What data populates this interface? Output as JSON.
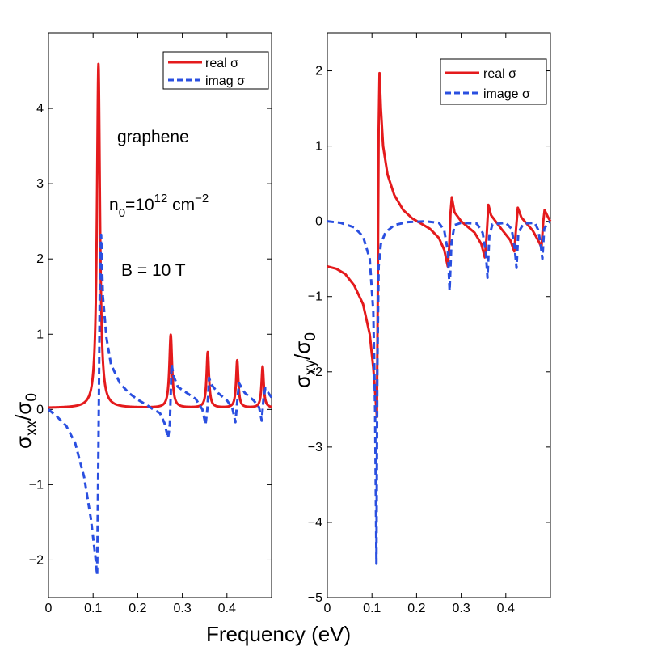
{
  "figure": {
    "shared_xlabel": "Frequency  (eV)"
  },
  "chart_data": [
    {
      "type": "line",
      "panel": "left",
      "ylabel": {
        "main": "σ",
        "sub": "xx",
        "mid": "/σ",
        "sub2": "0"
      },
      "xlim": [
        0,
        0.5
      ],
      "ylim": [
        -2.5,
        5
      ],
      "xticks": [
        0,
        0.1,
        0.2,
        0.3,
        0.4
      ],
      "xtick_labels": [
        "0",
        "0.1",
        "0.2",
        "0.3",
        "0.4"
      ],
      "yticks": [
        -2,
        -1,
        0,
        1,
        2,
        3,
        4
      ],
      "ytick_labels": [
        "−2",
        "−1",
        "0",
        "1",
        "2",
        "3",
        "4"
      ],
      "legend": [
        "real σ",
        "imag σ"
      ],
      "annotations": {
        "material": "graphene",
        "density_pre": "n",
        "density_sub": "0",
        "density_mid": "=10",
        "density_sup": "12",
        "density_unit": " cm",
        "density_unit_sup": "−2",
        "field": "B = 10 T"
      },
      "series": [
        {
          "name": "real σ",
          "color": "#e41a1c",
          "style": "solid",
          "resonances": [
            {
              "e0": 0.112,
              "w": 0.004,
              "a": 4.57
            },
            {
              "e0": 0.274,
              "w": 0.0036,
              "a": 0.97
            },
            {
              "e0": 0.357,
              "w": 0.0032,
              "a": 0.74
            },
            {
              "e0": 0.423,
              "w": 0.003,
              "a": 0.63
            },
            {
              "e0": 0.48,
              "w": 0.003,
              "a": 0.55
            }
          ],
          "baseline": 0.02
        },
        {
          "name": "imag σ",
          "color": "#2a4fe0",
          "style": "dashed",
          "points": [
            [
              0,
              0
            ],
            [
              0.02,
              -0.1
            ],
            [
              0.04,
              -0.22
            ],
            [
              0.06,
              -0.45
            ],
            [
              0.08,
              -0.9
            ],
            [
              0.095,
              -1.45
            ],
            [
              0.105,
              -1.95
            ],
            [
              0.109,
              -2.2
            ],
            [
              0.112,
              -0.5
            ],
            [
              0.115,
              1.6
            ],
            [
              0.118,
              2.32
            ],
            [
              0.122,
              1.5
            ],
            [
              0.13,
              0.95
            ],
            [
              0.14,
              0.6
            ],
            [
              0.16,
              0.35
            ],
            [
              0.18,
              0.22
            ],
            [
              0.2,
              0.13
            ],
            [
              0.22,
              0.06
            ],
            [
              0.235,
              0.0
            ],
            [
              0.25,
              -0.05
            ],
            [
              0.26,
              -0.18
            ],
            [
              0.268,
              -0.38
            ],
            [
              0.272,
              -0.2
            ],
            [
              0.276,
              0.6
            ],
            [
              0.28,
              0.45
            ],
            [
              0.29,
              0.3
            ],
            [
              0.31,
              0.22
            ],
            [
              0.33,
              0.14
            ],
            [
              0.345,
              0.0
            ],
            [
              0.352,
              -0.2
            ],
            [
              0.356,
              0.0
            ],
            [
              0.36,
              0.42
            ],
            [
              0.365,
              0.33
            ],
            [
              0.38,
              0.22
            ],
            [
              0.4,
              0.12
            ],
            [
              0.412,
              0.02
            ],
            [
              0.419,
              -0.17
            ],
            [
              0.423,
              0.1
            ],
            [
              0.427,
              0.35
            ],
            [
              0.44,
              0.22
            ],
            [
              0.46,
              0.12
            ],
            [
              0.472,
              0.03
            ],
            [
              0.478,
              -0.15
            ],
            [
              0.482,
              0.15
            ],
            [
              0.486,
              0.28
            ],
            [
              0.495,
              0.2
            ],
            [
              0.5,
              0.16
            ]
          ]
        }
      ]
    },
    {
      "type": "line",
      "panel": "right",
      "ylabel": {
        "main": "σ",
        "sub": "xy",
        "mid": "/σ",
        "sub2": "0"
      },
      "xlim": [
        0,
        0.5
      ],
      "ylim": [
        -5,
        2.5
      ],
      "xticks": [
        0,
        0.1,
        0.2,
        0.3,
        0.4
      ],
      "xtick_labels": [
        "0",
        "0.1",
        "0.2",
        "0.3",
        "0.4"
      ],
      "yticks": [
        -5,
        -4,
        -3,
        -2,
        -1,
        0,
        1,
        2
      ],
      "ytick_labels": [
        "−5",
        "−4",
        "−3",
        "−2",
        "−1",
        "0",
        "1",
        "2"
      ],
      "legend": [
        "real σ",
        "image σ"
      ],
      "series": [
        {
          "name": "real σ",
          "color": "#e41a1c",
          "style": "solid",
          "points": [
            [
              0,
              -0.6
            ],
            [
              0.02,
              -0.63
            ],
            [
              0.04,
              -0.7
            ],
            [
              0.06,
              -0.85
            ],
            [
              0.08,
              -1.1
            ],
            [
              0.095,
              -1.5
            ],
            [
              0.103,
              -1.95
            ],
            [
              0.108,
              -2.35
            ],
            [
              0.111,
              -2.6
            ],
            [
              0.113,
              -1.0
            ],
            [
              0.115,
              1.2
            ],
            [
              0.117,
              1.97
            ],
            [
              0.12,
              1.5
            ],
            [
              0.125,
              1.0
            ],
            [
              0.135,
              0.62
            ],
            [
              0.15,
              0.35
            ],
            [
              0.17,
              0.15
            ],
            [
              0.19,
              0.04
            ],
            [
              0.21,
              -0.03
            ],
            [
              0.23,
              -0.1
            ],
            [
              0.25,
              -0.22
            ],
            [
              0.262,
              -0.38
            ],
            [
              0.27,
              -0.6
            ],
            [
              0.273,
              -0.35
            ],
            [
              0.276,
              0.1
            ],
            [
              0.279,
              0.32
            ],
            [
              0.285,
              0.12
            ],
            [
              0.3,
              0.0
            ],
            [
              0.33,
              -0.15
            ],
            [
              0.345,
              -0.3
            ],
            [
              0.353,
              -0.48
            ],
            [
              0.357,
              -0.2
            ],
            [
              0.361,
              0.22
            ],
            [
              0.367,
              0.08
            ],
            [
              0.39,
              -0.1
            ],
            [
              0.41,
              -0.25
            ],
            [
              0.419,
              -0.4
            ],
            [
              0.423,
              -0.1
            ],
            [
              0.427,
              0.18
            ],
            [
              0.435,
              0.05
            ],
            [
              0.46,
              -0.12
            ],
            [
              0.475,
              -0.28
            ],
            [
              0.48,
              -0.35
            ],
            [
              0.484,
              0.0
            ],
            [
              0.487,
              0.15
            ],
            [
              0.495,
              0.05
            ],
            [
              0.5,
              0.0
            ]
          ]
        },
        {
          "name": "image σ",
          "color": "#2a4fe0",
          "style": "dashed",
          "points": [
            [
              0,
              0.0
            ],
            [
              0.03,
              -0.02
            ],
            [
              0.06,
              -0.08
            ],
            [
              0.08,
              -0.2
            ],
            [
              0.095,
              -0.5
            ],
            [
              0.103,
              -1.2
            ],
            [
              0.107,
              -2.5
            ],
            [
              0.11,
              -4.55
            ],
            [
              0.112,
              -2.0
            ],
            [
              0.115,
              -0.6
            ],
            [
              0.12,
              -0.3
            ],
            [
              0.13,
              -0.15
            ],
            [
              0.15,
              -0.05
            ],
            [
              0.18,
              -0.01
            ],
            [
              0.22,
              0.0
            ],
            [
              0.25,
              -0.02
            ],
            [
              0.262,
              -0.12
            ],
            [
              0.27,
              -0.4
            ],
            [
              0.274,
              -0.92
            ],
            [
              0.278,
              -0.3
            ],
            [
              0.285,
              -0.05
            ],
            [
              0.3,
              -0.02
            ],
            [
              0.335,
              -0.03
            ],
            [
              0.348,
              -0.15
            ],
            [
              0.355,
              -0.4
            ],
            [
              0.359,
              -0.75
            ],
            [
              0.363,
              -0.2
            ],
            [
              0.37,
              -0.04
            ],
            [
              0.4,
              -0.02
            ],
            [
              0.413,
              -0.1
            ],
            [
              0.42,
              -0.35
            ],
            [
              0.424,
              -0.62
            ],
            [
              0.428,
              -0.15
            ],
            [
              0.44,
              -0.03
            ],
            [
              0.465,
              -0.02
            ],
            [
              0.473,
              -0.12
            ],
            [
              0.479,
              -0.35
            ],
            [
              0.482,
              -0.5
            ],
            [
              0.486,
              -0.1
            ],
            [
              0.495,
              -0.02
            ],
            [
              0.5,
              0.0
            ]
          ]
        }
      ]
    }
  ]
}
